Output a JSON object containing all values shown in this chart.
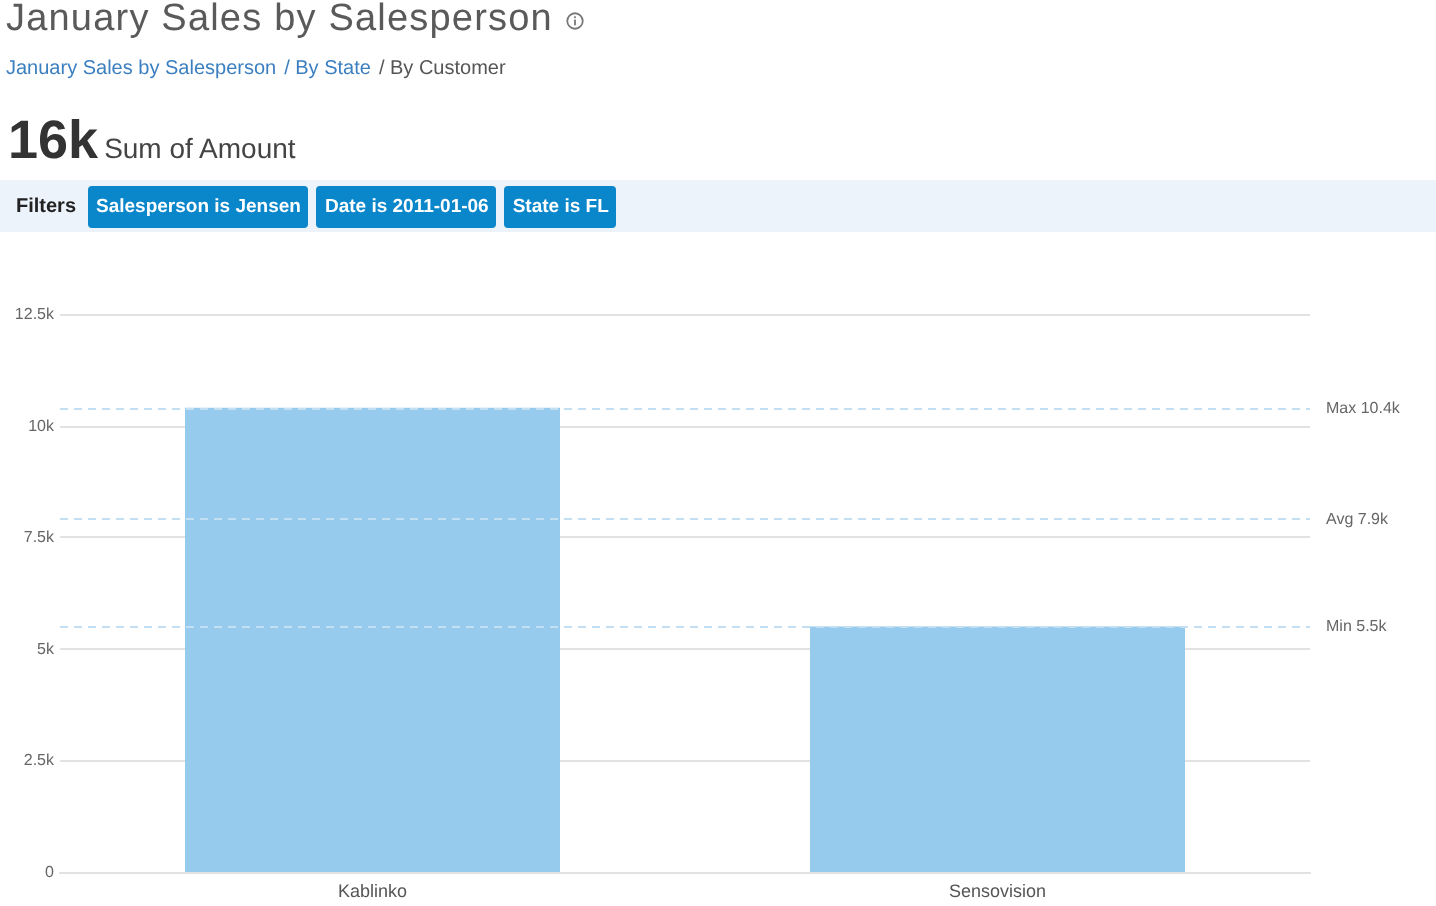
{
  "chart_data": {
    "type": "bar",
    "title": "January Sales by Salesperson",
    "annotations": [
      "January Sales by Salesperson",
      "/ By State",
      "/ By Customer",
      "16k",
      "Sum of Amount",
      "Filters",
      "Salesperson is Jensen",
      "Date is 2011-01-06",
      "State is FL"
    ],
    "categories": [
      "Kablinko",
      "Sensovision"
    ],
    "values": [
      10400,
      5500
    ],
    "color": "#96cbed",
    "ylim": [
      0,
      12500
    ],
    "yticks": [
      0,
      {
        "value": 2500,
        "label": "2.5k"
      },
      {
        "value": 5000,
        "label": "5k"
      },
      {
        "value": 7500,
        "label": "7.5k"
      },
      {
        "value": 10000,
        "label": "10k"
      },
      {
        "value": 12500,
        "label": "12.5k"
      }
    ],
    "grid": "y",
    "ref_lines": [
      {
        "axis": "y",
        "value": 10400,
        "label": "Max 10.4k",
        "color": "#c3dff3",
        "line_style": "dashed"
      },
      {
        "axis": "y",
        "value": 7900,
        "label": "Avg 7.9k",
        "color": "#c3dff3",
        "line_style": "dashed"
      },
      {
        "axis": "y",
        "value": 5500,
        "label": "Min 5.5k",
        "color": "#c3dff3",
        "line_style": "dashed"
      }
    ]
  }
}
